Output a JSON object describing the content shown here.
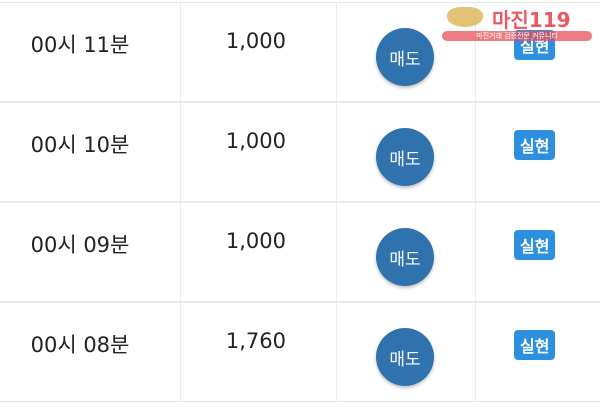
{
  "rows": [
    {
      "time": "00시 11분",
      "amount": "1,000",
      "action": "매도",
      "status": "실현"
    },
    {
      "time": "00시 10분",
      "amount": "1,000",
      "action": "매도",
      "status": "실현"
    },
    {
      "time": "00시 09분",
      "amount": "1,000",
      "action": "매도",
      "status": "실현"
    },
    {
      "time": "00시 08분",
      "amount": "1,760",
      "action": "매도",
      "status": "실현"
    }
  ],
  "watermark": {
    "title": "마진119",
    "subtitle": "마진거래 검증전문 커뮤니티"
  },
  "colors": {
    "sell_button": "#2f72ad",
    "status_badge": "#2d8fe0"
  }
}
